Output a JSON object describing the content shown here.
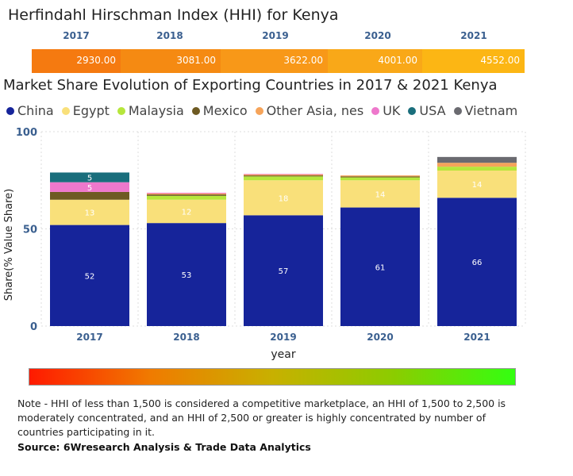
{
  "hhi": {
    "title": "Herfindahl Hirschman Index (HHI) for Kenya",
    "years": [
      "2017",
      "2018",
      "2019",
      "2020",
      "2021"
    ],
    "values": [
      "2930.00",
      "3081.00",
      "3622.00",
      "4001.00",
      "4552.00"
    ],
    "colors": [
      "#f57a10",
      "#f58a12",
      "#f89818",
      "#f9a818",
      "#fcb614"
    ]
  },
  "chart_data": {
    "type": "bar",
    "stacked": true,
    "title": "Market Share Evolution of Exporting Countries in 2017 & 2021 Kenya",
    "xlabel": "year",
    "ylabel": "Share(% Value Share)",
    "ylim": [
      0,
      100
    ],
    "yticks": [
      0,
      50,
      100
    ],
    "categories": [
      "2017",
      "2018",
      "2019",
      "2020",
      "2021"
    ],
    "series": [
      {
        "name": "China",
        "color": "#16249a",
        "values": [
          52,
          53,
          57,
          61,
          66
        ],
        "labels": [
          "52",
          "53",
          "57",
          "61",
          "66"
        ]
      },
      {
        "name": "Egypt",
        "color": "#f9e07a",
        "values": [
          13,
          12,
          18,
          14,
          14
        ],
        "labels": [
          "13",
          "12",
          "18",
          "14",
          "14"
        ]
      },
      {
        "name": "Malaysia",
        "color": "#b6e63c",
        "values": [
          0,
          2,
          2,
          1.5,
          2
        ],
        "labels": [
          "",
          "",
          "",
          "",
          ""
        ]
      },
      {
        "name": "Mexico",
        "color": "#6e5a22",
        "values": [
          4,
          0.7,
          0.5,
          0.5,
          0
        ],
        "labels": [
          "",
          "",
          "",
          "",
          ""
        ]
      },
      {
        "name": "Other Asia, nes",
        "color": "#f6a45a",
        "values": [
          0,
          0.5,
          0.5,
          0.5,
          2
        ],
        "labels": [
          "",
          "",
          "",
          "",
          ""
        ]
      },
      {
        "name": "UK",
        "color": "#ee78cc",
        "values": [
          5,
          0.4,
          0.3,
          0,
          0
        ],
        "labels": [
          "5",
          "",
          "",
          "",
          ""
        ]
      },
      {
        "name": "USA",
        "color": "#1a6e7c",
        "values": [
          5,
          0,
          0,
          0,
          0
        ],
        "labels": [
          "5",
          "",
          "",
          "",
          ""
        ]
      },
      {
        "name": "Vietnam",
        "color": "#6a6a70",
        "values": [
          0,
          0,
          0,
          0,
          3
        ],
        "labels": [
          "",
          "",
          "",
          "",
          ""
        ]
      }
    ]
  },
  "note": "Note - HHI of less than 1,500 is considered a competitive marketplace, an HHI of 1,500 to 2,500 is moderately concentrated, and an HHI of 2,500 or greater is highly concentrated by number of countries participating in it.",
  "source": "Source: 6Wresearch Analysis & Trade Data Analytics"
}
